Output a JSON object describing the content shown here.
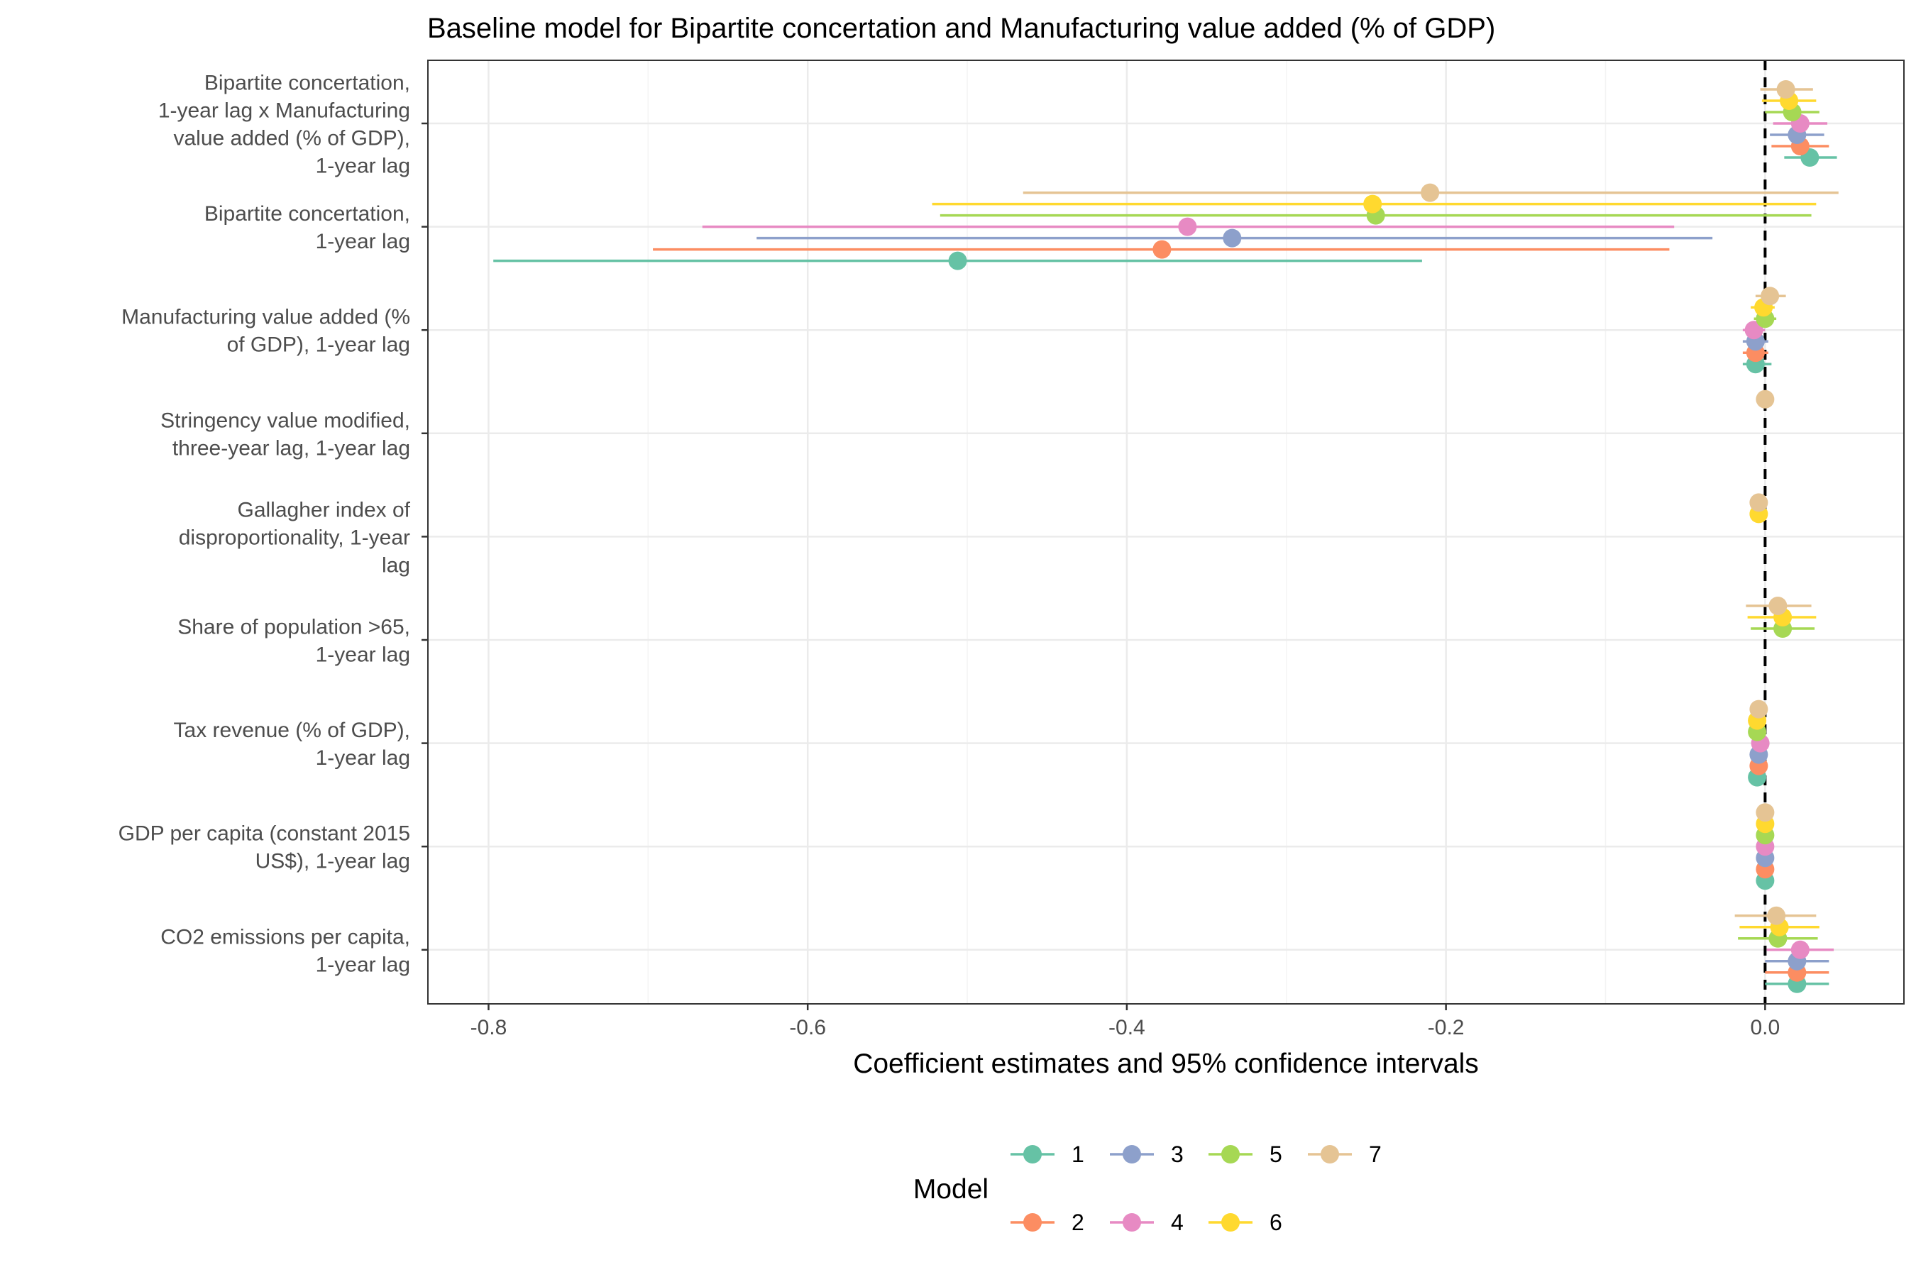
{
  "chart_data": {
    "type": "coefficient-dot-whisker",
    "title": "Baseline model for Bipartite concertation and Manufacturing value added (% of GDP)",
    "xlabel": "Coefficient estimates and 95% confidence intervals",
    "xlim": [
      -0.838,
      0.087
    ],
    "xticks": [
      -0.8,
      -0.6,
      -0.4,
      -0.2,
      0.0
    ],
    "xtick_labels": [
      "-0.8",
      "-0.6",
      "-0.4",
      "-0.2",
      "0.0"
    ],
    "reference_line": 0,
    "grid": true,
    "legend": {
      "title": "Model",
      "position": "bottom",
      "entries": [
        "1",
        "2",
        "3",
        "4",
        "5",
        "6",
        "7"
      ]
    },
    "terms": [
      {
        "lines": [
          "Bipartite concertation,",
          "1-year lag x Manufacturing",
          "value added (% of GDP),",
          "1-year lag"
        ]
      },
      {
        "lines": [
          "Bipartite concertation,",
          "1-year lag"
        ]
      },
      {
        "lines": [
          "Manufacturing value added (%",
          "of GDP), 1-year lag"
        ]
      },
      {
        "lines": [
          "Stringency value modified,",
          "three-year lag, 1-year lag"
        ]
      },
      {
        "lines": [
          "Gallagher index of",
          "disproportionality, 1-year",
          "lag"
        ]
      },
      {
        "lines": [
          "Share of population >65,",
          "1-year lag"
        ]
      },
      {
        "lines": [
          "Tax revenue (% of GDP),",
          "1-year lag"
        ]
      },
      {
        "lines": [
          "GDP per capita (constant 2015",
          "US$), 1-year lag"
        ]
      },
      {
        "lines": [
          "CO2 emissions per capita,",
          "1-year lag"
        ]
      }
    ],
    "series": [
      {
        "name": "1",
        "color": "#66c2a5",
        "points": [
          {
            "term": 0,
            "est": 0.028,
            "lo": 0.012,
            "hi": 0.045
          },
          {
            "term": 1,
            "est": -0.506,
            "lo": -0.797,
            "hi": -0.215
          },
          {
            "term": 2,
            "est": -0.006,
            "lo": -0.014,
            "hi": 0.004
          },
          {
            "term": 6,
            "est": -0.005,
            "lo": -0.008,
            "hi": -0.002
          },
          {
            "term": 7,
            "est": 0.0,
            "lo": -0.001,
            "hi": 0.001
          },
          {
            "term": 8,
            "est": 0.02,
            "lo": 0.0,
            "hi": 0.04
          }
        ]
      },
      {
        "name": "2",
        "color": "#fc8d62",
        "points": [
          {
            "term": 0,
            "est": 0.022,
            "lo": 0.004,
            "hi": 0.04
          },
          {
            "term": 1,
            "est": -0.378,
            "lo": -0.697,
            "hi": -0.06
          },
          {
            "term": 2,
            "est": -0.006,
            "lo": -0.014,
            "hi": 0.002
          },
          {
            "term": 6,
            "est": -0.004,
            "lo": -0.007,
            "hi": -0.001
          },
          {
            "term": 7,
            "est": 0.0,
            "lo": -0.001,
            "hi": 0.001
          },
          {
            "term": 8,
            "est": 0.02,
            "lo": 0.0,
            "hi": 0.04
          }
        ]
      },
      {
        "name": "3",
        "color": "#8da0cb",
        "points": [
          {
            "term": 0,
            "est": 0.02,
            "lo": 0.003,
            "hi": 0.037
          },
          {
            "term": 1,
            "est": -0.334,
            "lo": -0.632,
            "hi": -0.033
          },
          {
            "term": 2,
            "est": -0.006,
            "lo": -0.014,
            "hi": 0.002
          },
          {
            "term": 6,
            "est": -0.004,
            "lo": -0.007,
            "hi": -0.001
          },
          {
            "term": 7,
            "est": 0.0,
            "lo": -0.001,
            "hi": 0.001
          },
          {
            "term": 8,
            "est": 0.02,
            "lo": 0.0,
            "hi": 0.04
          }
        ]
      },
      {
        "name": "4",
        "color": "#e78ac3",
        "points": [
          {
            "term": 0,
            "est": 0.022,
            "lo": 0.005,
            "hi": 0.039
          },
          {
            "term": 1,
            "est": -0.362,
            "lo": -0.666,
            "hi": -0.057
          },
          {
            "term": 2,
            "est": -0.007,
            "lo": -0.014,
            "hi": 0.0
          },
          {
            "term": 6,
            "est": -0.003,
            "lo": -0.006,
            "hi": 0.0
          },
          {
            "term": 7,
            "est": 0.0,
            "lo": -0.001,
            "hi": 0.001
          },
          {
            "term": 8,
            "est": 0.022,
            "lo": 0.001,
            "hi": 0.043
          }
        ]
      },
      {
        "name": "5",
        "color": "#a6d854",
        "points": [
          {
            "term": 0,
            "est": 0.017,
            "lo": 0.0,
            "hi": 0.034
          },
          {
            "term": 1,
            "est": -0.244,
            "lo": -0.517,
            "hi": 0.029
          },
          {
            "term": 2,
            "est": 0.0,
            "lo": -0.007,
            "hi": 0.007
          },
          {
            "term": 5,
            "est": 0.011,
            "lo": -0.009,
            "hi": 0.031
          },
          {
            "term": 6,
            "est": -0.005,
            "lo": -0.008,
            "hi": -0.002
          },
          {
            "term": 7,
            "est": 0.0,
            "lo": -0.001,
            "hi": 0.001
          },
          {
            "term": 8,
            "est": 0.008,
            "lo": -0.017,
            "hi": 0.033
          }
        ]
      },
      {
        "name": "6",
        "color": "#ffd92f",
        "points": [
          {
            "term": 0,
            "est": 0.015,
            "lo": -0.002,
            "hi": 0.032
          },
          {
            "term": 1,
            "est": -0.246,
            "lo": -0.522,
            "hi": 0.032
          },
          {
            "term": 2,
            "est": -0.001,
            "lo": -0.009,
            "hi": 0.006
          },
          {
            "term": 4,
            "est": -0.004,
            "lo": -0.006,
            "hi": -0.002
          },
          {
            "term": 5,
            "est": 0.011,
            "lo": -0.011,
            "hi": 0.032
          },
          {
            "term": 6,
            "est": -0.005,
            "lo": -0.008,
            "hi": -0.002
          },
          {
            "term": 7,
            "est": 0.0,
            "lo": -0.001,
            "hi": 0.001
          },
          {
            "term": 8,
            "est": 0.009,
            "lo": -0.016,
            "hi": 0.034
          }
        ]
      },
      {
        "name": "7",
        "color": "#e5c494",
        "points": [
          {
            "term": 0,
            "est": 0.013,
            "lo": -0.003,
            "hi": 0.03
          },
          {
            "term": 1,
            "est": -0.21,
            "lo": -0.465,
            "hi": 0.046
          },
          {
            "term": 2,
            "est": 0.003,
            "lo": -0.006,
            "hi": 0.013
          },
          {
            "term": 3,
            "est": 0.0,
            "lo": -0.002,
            "hi": 0.002
          },
          {
            "term": 4,
            "est": -0.004,
            "lo": -0.007,
            "hi": -0.001
          },
          {
            "term": 5,
            "est": 0.008,
            "lo": -0.012,
            "hi": 0.029
          },
          {
            "term": 6,
            "est": -0.004,
            "lo": -0.007,
            "hi": -0.001
          },
          {
            "term": 7,
            "est": 0.0,
            "lo": -0.001,
            "hi": 0.001
          },
          {
            "term": 8,
            "est": 0.007,
            "lo": -0.019,
            "hi": 0.032
          }
        ]
      }
    ]
  }
}
